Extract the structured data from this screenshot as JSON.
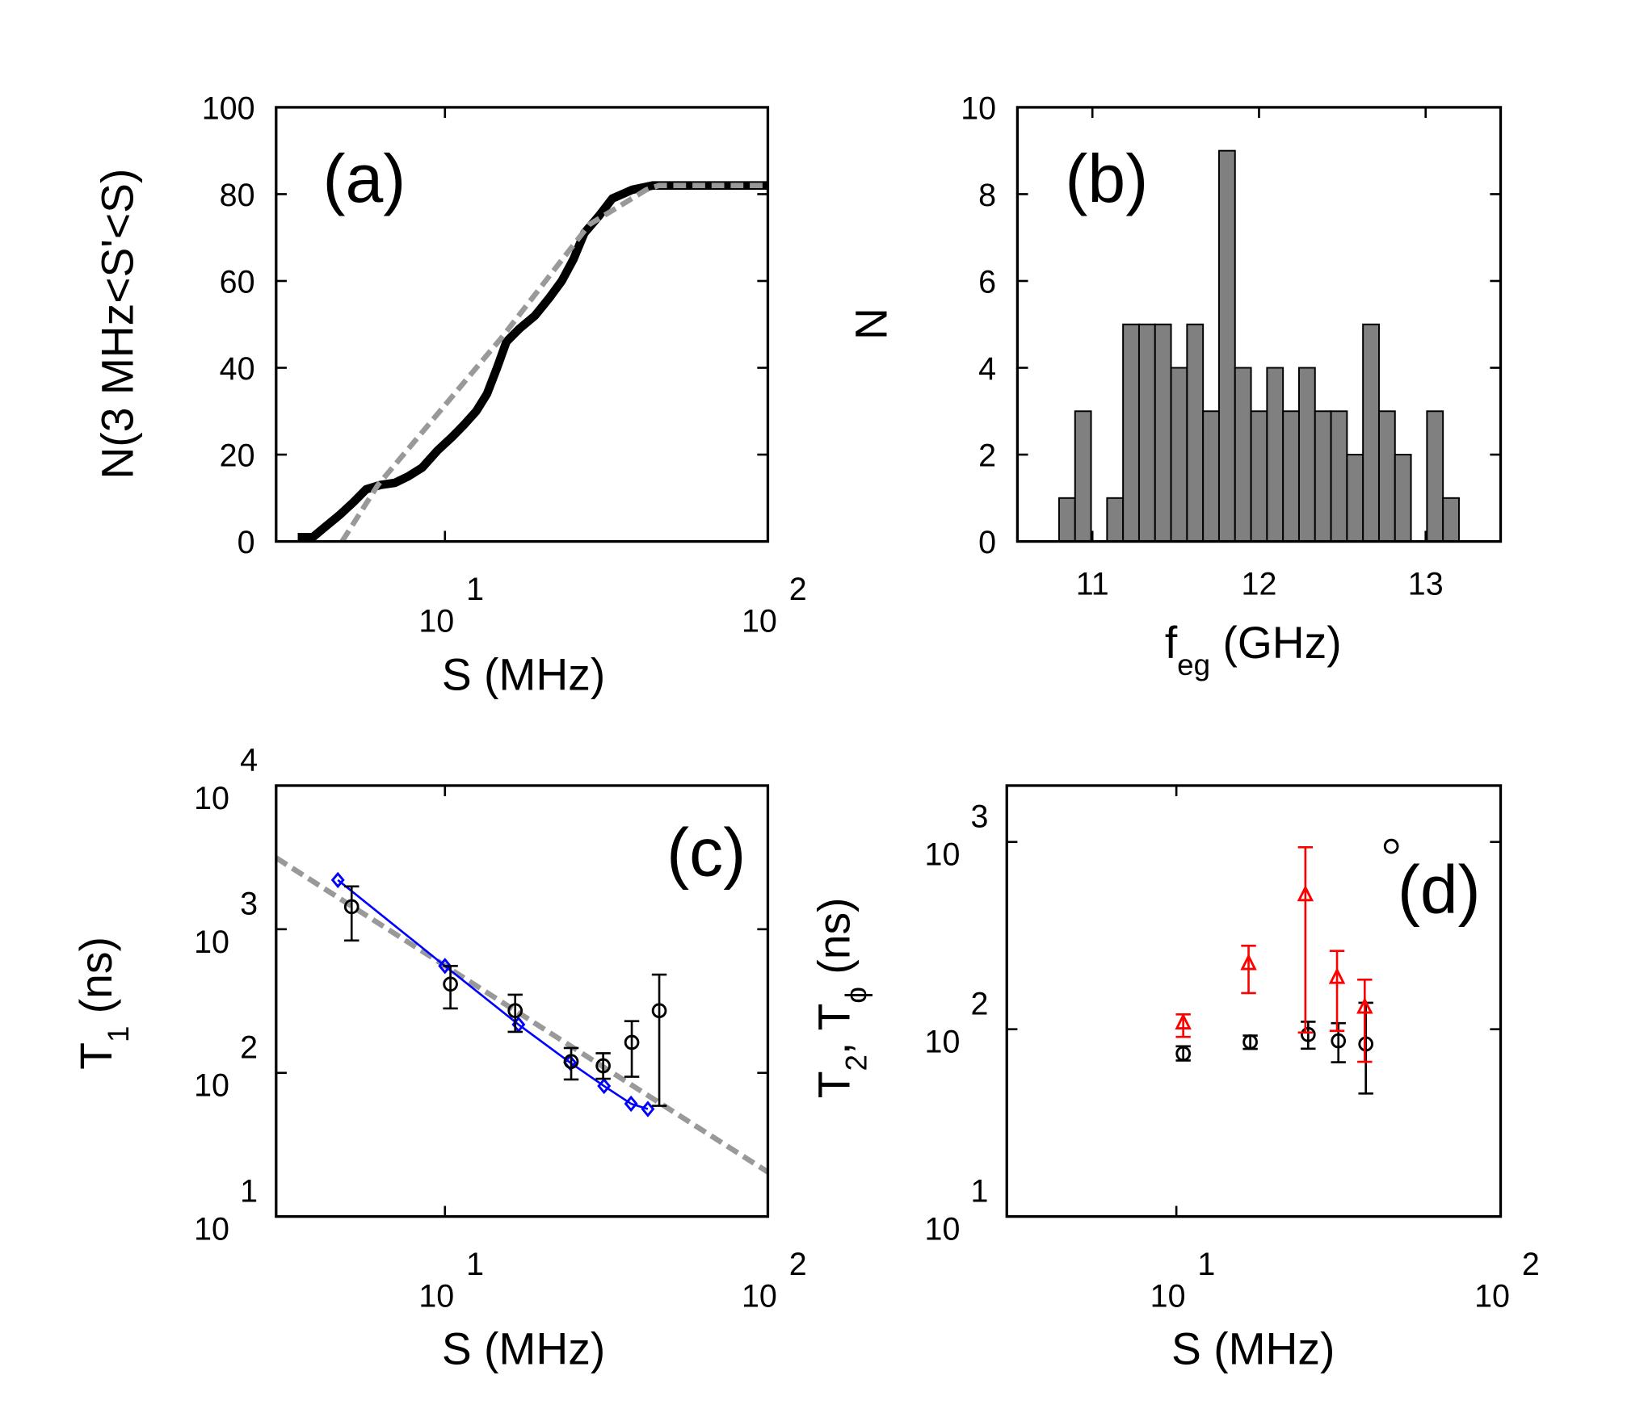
{
  "chart_data": [
    {
      "type": "line",
      "panel_label": "(a)",
      "xlabel": [
        {
          "text": "S (MHz)"
        }
      ],
      "ylabel": [
        {
          "text": "N(3 MHz<S'<S)"
        }
      ],
      "xscale": "log",
      "xlim": [
        3,
        100
      ],
      "ylim": [
        0,
        100
      ],
      "xticks": [
        {
          "value": 10,
          "label": "10",
          "exponent": "1"
        },
        {
          "value": 100,
          "label": "10",
          "exponent": "2"
        }
      ],
      "yticks": [
        0,
        20,
        40,
        60,
        80,
        100
      ],
      "series": [
        {
          "color": "#000000",
          "line": "solid",
          "linewidth": 8,
          "x": [
            3.5,
            3.9,
            4.2,
            4.7,
            5.2,
            5.7,
            6.3,
            7,
            7.7,
            8.5,
            9.5,
            10.5,
            11.5,
            12.5,
            13.5,
            14.5,
            15.5,
            17,
            19,
            21,
            23,
            25,
            27,
            30,
            33,
            38,
            44,
            100
          ],
          "values": [
            1,
            1,
            3,
            6,
            9,
            12,
            13,
            13.5,
            15,
            17,
            21,
            24,
            27,
            30,
            34,
            40,
            46,
            49,
            52,
            56,
            60,
            65,
            71,
            75,
            79,
            81,
            82,
            82
          ]
        },
        {
          "color": "#999999",
          "line": "dashed",
          "linewidth": 5,
          "x": [
            4.8,
            6.2,
            15,
            28,
            42,
            46,
            100
          ],
          "values": [
            0,
            13,
            47,
            73,
            81,
            82,
            82
          ]
        }
      ]
    },
    {
      "type": "histogram",
      "panel_label": "(b)",
      "xlabel": [
        {
          "text": "f"
        },
        {
          "text": "eg",
          "sub": true
        },
        {
          "text": " (GHz)"
        }
      ],
      "ylabel": [
        {
          "text": "N"
        }
      ],
      "xlim": [
        10.55,
        13.45
      ],
      "ylim": [
        0,
        10
      ],
      "xticks": [
        11,
        12,
        13
      ],
      "yticks": [
        0,
        2,
        4,
        6,
        8,
        10
      ],
      "color": "#808080",
      "bins": [
        10.8,
        10.896,
        10.992,
        11.088,
        11.184,
        11.28,
        11.376,
        11.472,
        11.568,
        11.664,
        11.76,
        11.856,
        11.952,
        12.048,
        12.144,
        12.24,
        12.336,
        12.432,
        12.528,
        12.624,
        12.72,
        12.816,
        12.912,
        13.008,
        13.104,
        13.2
      ],
      "counts": [
        1,
        3,
        0,
        1,
        5,
        5,
        5,
        4,
        5,
        3,
        9,
        4,
        3,
        4,
        3,
        4,
        3,
        3,
        2,
        5,
        3,
        2,
        0,
        3,
        1
      ]
    },
    {
      "type": "scatter",
      "panel_label": "(c)",
      "xlabel": [
        {
          "text": "S (MHz)"
        }
      ],
      "ylabel": [
        {
          "text": "T"
        },
        {
          "text": "1",
          "sub": true
        },
        {
          "text": " (ns)"
        }
      ],
      "xscale": "log",
      "yscale": "log",
      "xlim": [
        3,
        100
      ],
      "ylim": [
        10,
        10000
      ],
      "xticks": [
        {
          "value": 10,
          "label": "10",
          "exponent": "1"
        },
        {
          "value": 100,
          "label": "10",
          "exponent": "2"
        }
      ],
      "yticks": [
        {
          "value": 10,
          "label": "10",
          "exponent": "1"
        },
        {
          "value": 100,
          "label": "10",
          "exponent": "2"
        },
        {
          "value": 1000,
          "label": "10",
          "exponent": "3"
        },
        {
          "value": 10000,
          "label": "10",
          "exponent": "4"
        }
      ],
      "series": [
        {
          "color": "#999999",
          "line": "dashed",
          "linewidth": 5,
          "x": [
            3,
            100
          ],
          "values": [
            3140,
            20.4
          ]
        },
        {
          "color": "#0000ff",
          "line": "solid",
          "linewidth": 2,
          "marker": "diamond",
          "x": [
            4.66,
            10.0,
            16.9,
            24.4,
            31.1,
            37.7,
            42.5
          ],
          "values": [
            2200,
            555,
            217,
            118,
            81,
            61,
            56
          ]
        },
        {
          "color": "#000000",
          "marker": "circle",
          "x": [
            5.14,
            10.4,
            16.5,
            24.6,
            30.9,
            37.9,
            46.1
          ],
          "values": [
            1435,
            415,
            271,
            120,
            112,
            163,
            271
          ],
          "yerr_minus": [
            601,
            134,
            78,
            30,
            21,
            69,
            212
          ],
          "yerr_plus": [
            550,
            140,
            79,
            29,
            25,
            66,
            212
          ]
        }
      ]
    },
    {
      "type": "scatter",
      "panel_label": "(d)",
      "xlabel": [
        {
          "text": "S (MHz)"
        }
      ],
      "ylabel": [
        {
          "text": "T"
        },
        {
          "text": "2",
          "sub": true
        },
        {
          "text": ", T"
        },
        {
          "text": "ϕ",
          "sub": true
        },
        {
          "text": " (ns)"
        }
      ],
      "xscale": "log",
      "yscale": "log",
      "xlim": [
        3,
        100
      ],
      "ylim": [
        10,
        2000
      ],
      "xticks": [
        {
          "value": 10,
          "label": "10",
          "exponent": "1"
        },
        {
          "value": 100,
          "label": "10",
          "exponent": "2"
        }
      ],
      "yticks": [
        {
          "value": 10,
          "label": "10",
          "exponent": "1"
        },
        {
          "value": 100,
          "label": "10",
          "exponent": "2"
        },
        {
          "value": 1000,
          "label": "10",
          "exponent": "3"
        }
      ],
      "series": [
        {
          "color": "#000000",
          "marker": "circle",
          "x": [
            10.5,
            16.9,
            25.5,
            31.6,
            38.4,
            46.0
          ],
          "values": [
            74.1,
            85.5,
            93.7,
            86.7,
            83.4,
            948
          ],
          "yerr_minus": [
            6,
            7,
            15,
            20,
            38,
            null
          ],
          "yerr_plus": [
            7,
            7,
            16,
            21,
            55,
            null
          ]
        },
        {
          "color": "#ff0000",
          "marker": "triangle",
          "x": [
            10.5,
            16.7,
            25.0,
            31.3,
            38.1
          ],
          "values": [
            108,
            224,
            522,
            189,
            131
          ],
          "yerr_minus": [
            17,
            68,
            426,
            91,
            64
          ],
          "yerr_plus": [
            12,
            55,
            415,
            73,
            53
          ]
        }
      ]
    }
  ]
}
